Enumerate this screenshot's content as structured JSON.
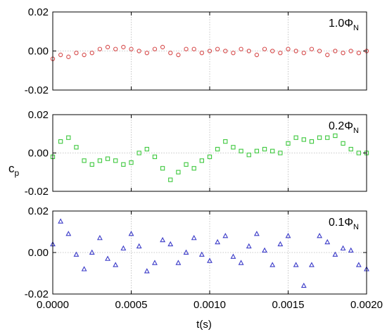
{
  "chart_data": {
    "type": "scatter",
    "xlabel": "t(s)",
    "ylabel": {
      "main": "c",
      "sub": "p"
    },
    "xlim": [
      0.0,
      0.002
    ],
    "x_ticks": [
      "0.0000",
      "0.0005",
      "0.0010",
      "0.0015",
      "0.0020"
    ],
    "grid": "dotted",
    "panels": [
      {
        "label": {
          "main": "0.1Φ",
          "sub": "N"
        },
        "ylim": [
          -0.02,
          0.02
        ],
        "y_ticks": [
          "-0.02",
          "0.00",
          "0.02"
        ],
        "marker": "triangle",
        "color": "#3a3ac8",
        "x": [
          0.0,
          5e-05,
          0.0001,
          0.00015,
          0.0002,
          0.00025,
          0.0003,
          0.00035,
          0.0004,
          0.00045,
          0.0005,
          0.00055,
          0.0006,
          0.00065,
          0.0007,
          0.00075,
          0.0008,
          0.00085,
          0.0009,
          0.00095,
          0.001,
          0.00105,
          0.0011,
          0.00115,
          0.0012,
          0.00125,
          0.0013,
          0.00135,
          0.0014,
          0.00145,
          0.0015,
          0.00155,
          0.0016,
          0.00165,
          0.0017,
          0.00175,
          0.0018,
          0.00185,
          0.0019,
          0.00195,
          0.002
        ],
        "y": [
          0.004,
          0.015,
          0.009,
          -0.001,
          -0.008,
          0.0,
          0.007,
          -0.003,
          -0.006,
          0.002,
          0.009,
          0.003,
          -0.009,
          -0.005,
          0.006,
          0.004,
          -0.005,
          0.0,
          0.007,
          -0.001,
          -0.004,
          0.005,
          0.008,
          -0.002,
          -0.005,
          0.003,
          0.009,
          0.001,
          -0.006,
          0.004,
          0.008,
          -0.006,
          -0.016,
          -0.006,
          0.008,
          0.005,
          -0.001,
          0.002,
          0.001,
          -0.006,
          -0.008
        ]
      },
      {
        "label": {
          "main": "0.2Φ",
          "sub": "N"
        },
        "ylim": [
          -0.02,
          0.02
        ],
        "y_ticks": [
          "-0.02",
          "0.00",
          "0.02"
        ],
        "marker": "square",
        "color": "#3ec83e",
        "x": [
          0.0,
          5e-05,
          0.0001,
          0.00015,
          0.0002,
          0.00025,
          0.0003,
          0.00035,
          0.0004,
          0.00045,
          0.0005,
          0.00055,
          0.0006,
          0.00065,
          0.0007,
          0.00075,
          0.0008,
          0.00085,
          0.0009,
          0.00095,
          0.001,
          0.00105,
          0.0011,
          0.00115,
          0.0012,
          0.00125,
          0.0013,
          0.00135,
          0.0014,
          0.00145,
          0.0015,
          0.00155,
          0.0016,
          0.00165,
          0.0017,
          0.00175,
          0.0018,
          0.00185,
          0.0019,
          0.00195,
          0.002
        ],
        "y": [
          -0.002,
          0.006,
          0.008,
          0.003,
          -0.004,
          -0.006,
          -0.004,
          -0.003,
          -0.004,
          -0.006,
          -0.005,
          0.0,
          0.002,
          -0.002,
          -0.008,
          -0.014,
          -0.01,
          -0.006,
          -0.008,
          -0.004,
          -0.002,
          0.002,
          0.006,
          0.003,
          0.001,
          -0.001,
          0.001,
          0.002,
          0.001,
          0.0,
          0.005,
          0.008,
          0.007,
          0.006,
          0.008,
          0.008,
          0.009,
          0.005,
          0.002,
          0.0,
          0.0
        ]
      },
      {
        "label": {
          "main": "1.0Φ",
          "sub": "N"
        },
        "ylim": [
          -0.02,
          0.02
        ],
        "y_ticks": [
          "-0.02",
          "0.00",
          "0.02"
        ],
        "marker": "circle",
        "color": "#d64a4a",
        "x": [
          0.0,
          5e-05,
          0.0001,
          0.00015,
          0.0002,
          0.00025,
          0.0003,
          0.00035,
          0.0004,
          0.00045,
          0.0005,
          0.00055,
          0.0006,
          0.00065,
          0.0007,
          0.00075,
          0.0008,
          0.00085,
          0.0009,
          0.00095,
          0.001,
          0.00105,
          0.0011,
          0.00115,
          0.0012,
          0.00125,
          0.0013,
          0.00135,
          0.0014,
          0.00145,
          0.0015,
          0.00155,
          0.0016,
          0.00165,
          0.0017,
          0.00175,
          0.0018,
          0.00185,
          0.0019,
          0.00195,
          0.002
        ],
        "y": [
          -0.004,
          -0.002,
          -0.003,
          -0.001,
          -0.002,
          -0.001,
          0.001,
          0.002,
          0.001,
          0.002,
          0.001,
          0.0,
          -0.001,
          0.001,
          0.002,
          -0.001,
          -0.002,
          0.001,
          0.001,
          -0.001,
          0.0,
          0.001,
          0.0,
          -0.001,
          0.001,
          0.0,
          -0.002,
          0.001,
          0.0,
          -0.001,
          0.001,
          0.0,
          -0.001,
          0.001,
          0.0,
          -0.002,
          0.0,
          -0.001,
          0.0,
          -0.001,
          0.0
        ]
      }
    ]
  }
}
